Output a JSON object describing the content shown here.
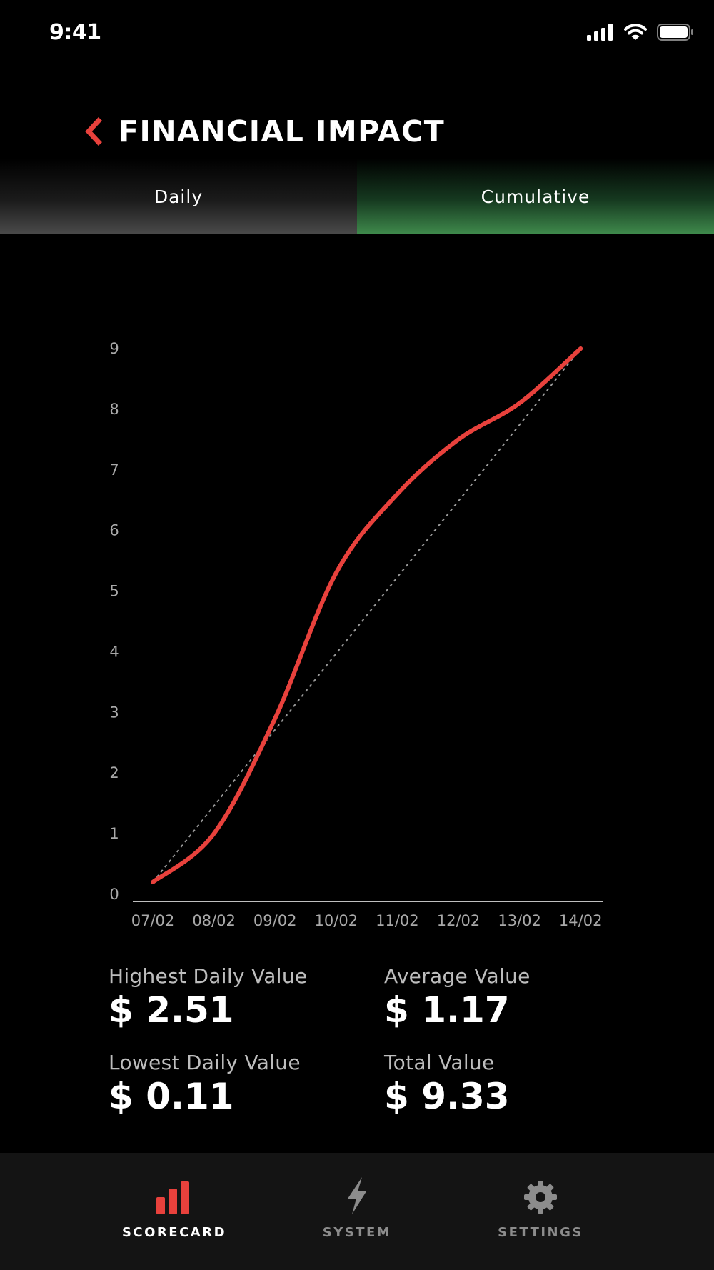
{
  "status": {
    "time": "9:41"
  },
  "header": {
    "title": "FINANCIAL IMPACT"
  },
  "tabs": [
    {
      "label": "Daily",
      "active": false
    },
    {
      "label": "Cumulative",
      "active": true
    }
  ],
  "colors": {
    "accent": "#e8413c",
    "active_tab": "#3f8a4c",
    "inactive_nav": "#8c8c8c",
    "axis": "#bfbfbf",
    "trend": "#9a9a9a"
  },
  "chart_data": {
    "type": "line",
    "x": [
      "07/02",
      "08/02",
      "09/02",
      "10/02",
      "11/02",
      "12/02",
      "13/02",
      "14/02"
    ],
    "series": [
      {
        "values": [
          0.2,
          1.0,
          2.9,
          5.3,
          6.6,
          7.5,
          8.1,
          9.0
        ]
      }
    ],
    "trend_line": {
      "from": 0.2,
      "to": 9.0,
      "style": "dashed"
    },
    "yticks": [
      0,
      1,
      2,
      3,
      4,
      5,
      6,
      7,
      8,
      9
    ],
    "ylim": [
      0,
      9
    ],
    "grid": false,
    "title": "",
    "xlabel": "",
    "ylabel": ""
  },
  "stats": {
    "highest": {
      "label": "Highest Daily Value",
      "value": "$ 2.51"
    },
    "average": {
      "label": "Average Value",
      "value": "$ 1.17"
    },
    "lowest": {
      "label": "Lowest Daily Value",
      "value": "$ 0.11"
    },
    "total": {
      "label": "Total Value",
      "value": "$ 9.33"
    }
  },
  "nav": [
    {
      "label": "SCORECARD",
      "icon": "bar-chart-icon",
      "active": true
    },
    {
      "label": "SYSTEM",
      "icon": "lightning-icon",
      "active": false
    },
    {
      "label": "SETTINGS",
      "icon": "gear-icon",
      "active": false
    }
  ]
}
